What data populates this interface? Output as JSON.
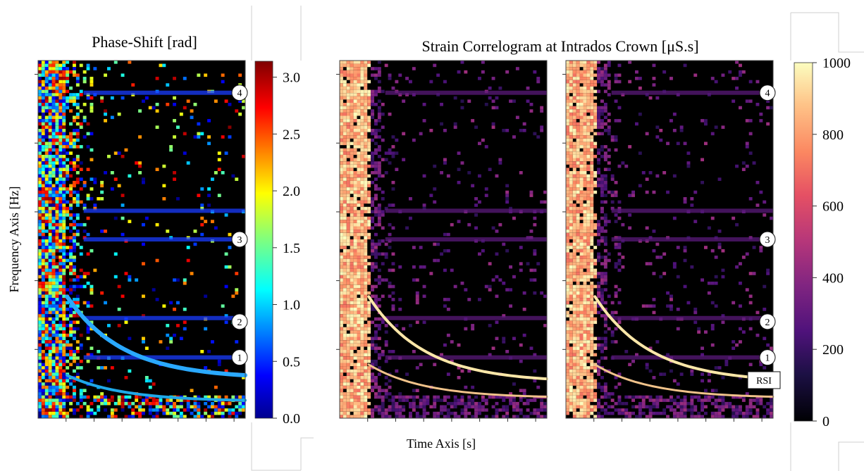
{
  "chart_data": [
    {
      "type": "heatmap",
      "title": "Phase-Shift [rad]",
      "ylabel": "Frequency Axis [Hz]",
      "xlabel": "",
      "colorbar": {
        "colormap": "jet",
        "range": [
          0.0,
          3.14
        ],
        "ticks": [
          0.0,
          0.5,
          1.0,
          1.5,
          2.0,
          2.5,
          3.0
        ],
        "tick_labels": [
          "0.0",
          "0.5",
          "1.0",
          "1.5",
          "2.0",
          "2.5",
          "3.0"
        ]
      },
      "x_tick_count": 8,
      "y_tick_count": 5,
      "markers": [
        "4",
        "3",
        "2",
        "1"
      ],
      "background_color": "#000000"
    },
    {
      "type": "heatmap",
      "title": "Strain Correlogram at Intrados Crown [μS.s]",
      "xlabel": "Time Axis [s]",
      "ylabel": "",
      "panels": 2,
      "colorbar": {
        "colormap": "magma",
        "range": [
          0,
          1000
        ],
        "ticks": [
          0,
          200,
          400,
          600,
          800,
          1000
        ],
        "tick_labels": [
          "0",
          "200",
          "400",
          "600",
          "800",
          "1000"
        ]
      },
      "x_tick_count": 8,
      "y_tick_count": 5,
      "markers": [
        "4",
        "3",
        "2",
        "1"
      ],
      "callout": "RSI"
    }
  ]
}
